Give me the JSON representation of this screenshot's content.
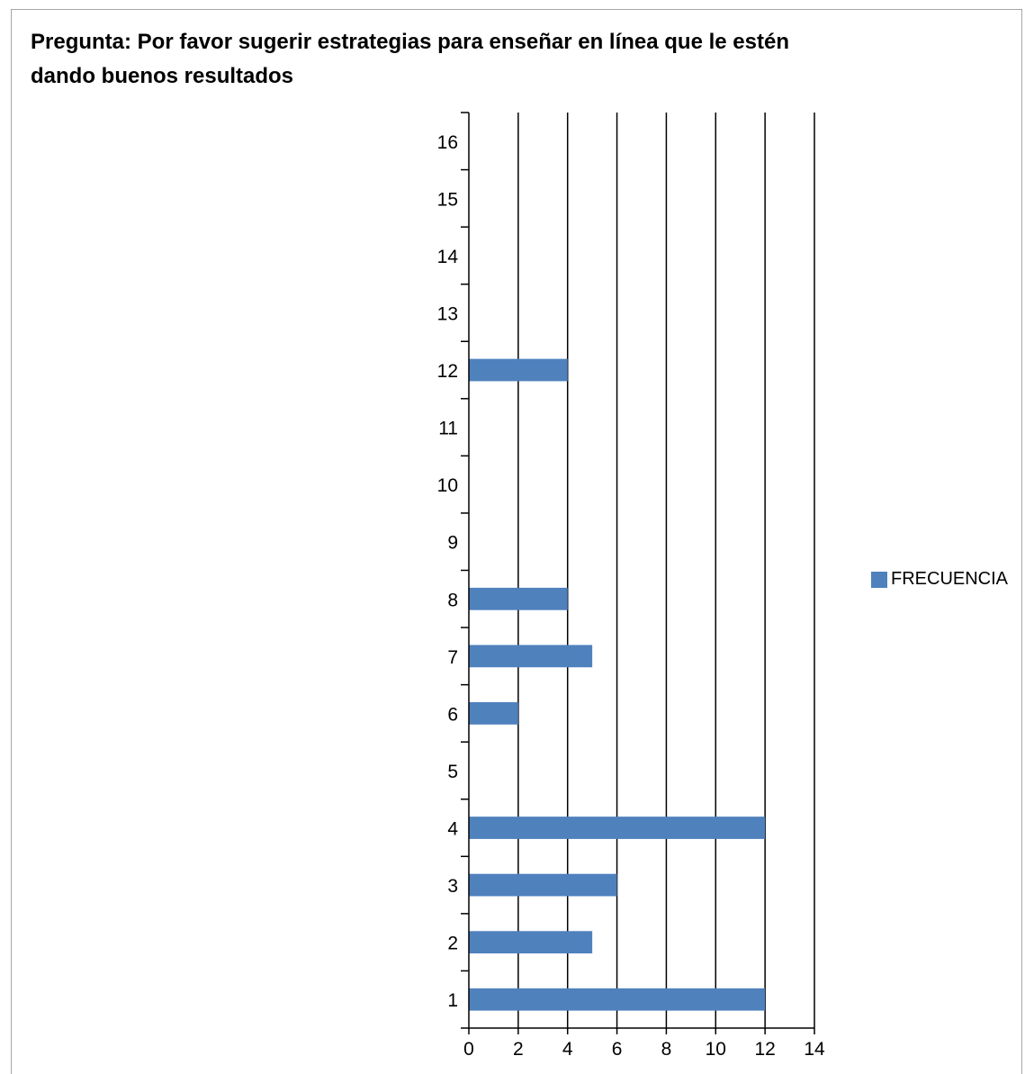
{
  "title": "Pregunta: Por favor sugerir estrategias para enseñar en línea que le estén dando buenos resultados",
  "chart_data": {
    "type": "bar",
    "orientation": "horizontal",
    "title": "Pregunta: Por favor sugerir estrategias para enseñar en línea que le estén dando buenos resultados",
    "categories": [
      "1",
      "2",
      "3",
      "4",
      "5",
      "6",
      "7",
      "8",
      "9",
      "10",
      "11",
      "12",
      "13",
      "14",
      "15",
      "16"
    ],
    "series": [
      {
        "name": "FRECUENCIA",
        "values": [
          12,
          5,
          6,
          12,
          0,
          2,
          5,
          4,
          0,
          0,
          0,
          4,
          0,
          0,
          0,
          0
        ]
      }
    ],
    "xlim": [
      0,
      14
    ],
    "x_ticks": [
      "0",
      "2",
      "4",
      "6",
      "8",
      "10",
      "12",
      "14"
    ],
    "grid": "vertical major gridlines",
    "legend": "right",
    "colors": {
      "bar": "#4f81bd",
      "grid": "#000000"
    }
  }
}
